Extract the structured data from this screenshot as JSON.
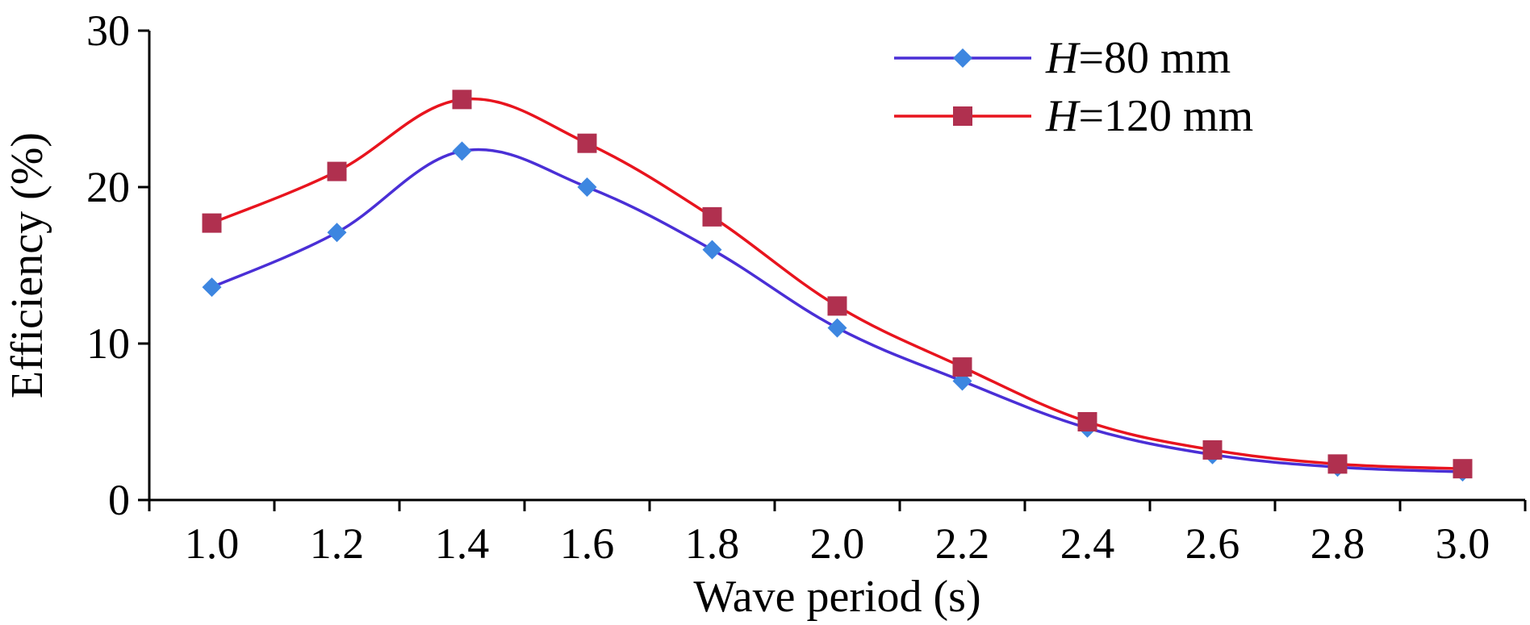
{
  "chart_data": {
    "type": "line",
    "title": "",
    "xlabel": "Wave period (s)",
    "ylabel": "Efficiency (%)",
    "x": [
      1.0,
      1.2,
      1.4,
      1.6,
      1.8,
      2.0,
      2.2,
      2.4,
      2.6,
      2.8,
      3.0
    ],
    "x_tick_labels": [
      "1.0",
      "1.2",
      "1.4",
      "1.6",
      "1.8",
      "2.0",
      "2.2",
      "2.4",
      "2.6",
      "2.8",
      "3.0"
    ],
    "y_tick_labels": [
      "0",
      "10",
      "20",
      "30"
    ],
    "y_ticks": [
      0,
      10,
      20,
      30
    ],
    "ylim": [
      0,
      30
    ],
    "xlim": [
      0.9,
      3.1
    ],
    "grid": false,
    "legend_position": "top-right",
    "series": [
      {
        "name_italic": "H",
        "name_rest": "=80 mm",
        "color": "#4a2fd6",
        "marker": "diamond",
        "marker_color": "#3d86e0",
        "values": [
          13.6,
          17.1,
          22.3,
          20.0,
          16.0,
          11.0,
          7.6,
          4.6,
          2.9,
          2.1,
          1.8
        ]
      },
      {
        "name_italic": "H",
        "name_rest": "=120 mm",
        "color": "#e8141e",
        "marker": "square",
        "marker_color": "#b0304f",
        "values": [
          17.7,
          21.0,
          25.6,
          22.8,
          18.1,
          12.4,
          8.5,
          5.0,
          3.2,
          2.3,
          2.0
        ]
      }
    ]
  }
}
